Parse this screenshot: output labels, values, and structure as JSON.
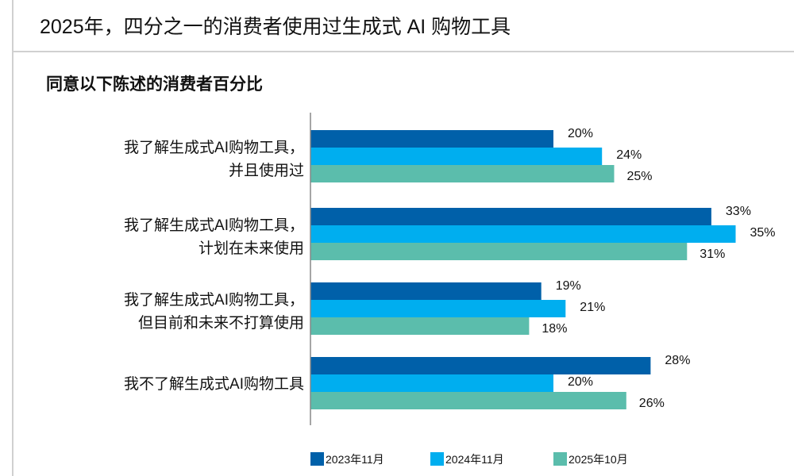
{
  "header": {
    "title": "2025年，四分之一的消费者使用过生成式 AI 购物工具"
  },
  "chart_data": {
    "type": "bar",
    "orientation": "horizontal",
    "title": "同意以下陈述的消费者百分比",
    "categories": [
      [
        "我了解生成式AI购物工具，",
        "并且使用过"
      ],
      [
        "我了解生成式AI购物工具，",
        "计划在未来使用"
      ],
      [
        "我了解生成式AI购物工具，",
        "但目前和未来不打算使用"
      ],
      [
        "我不了解生成式AI购物工具"
      ]
    ],
    "series": [
      {
        "name": "2023年11月",
        "color": "#0060A9",
        "values": [
          20,
          33,
          19,
          28
        ],
        "labels": [
          "20%",
          "33%",
          "19%",
          "28%"
        ]
      },
      {
        "name": "2024年11月",
        "color": "#00AEEF",
        "values": [
          24,
          35,
          21,
          20
        ],
        "labels": [
          "24%",
          "35%",
          "21%",
          "20%"
        ]
      },
      {
        "name": "2025年10月",
        "color": "#5BBDAC",
        "values": [
          25,
          31,
          18,
          26
        ],
        "labels": [
          "25%",
          "31%",
          "18%",
          "26%"
        ]
      }
    ],
    "unit": "%",
    "legend": "bottom",
    "grid": false
  }
}
